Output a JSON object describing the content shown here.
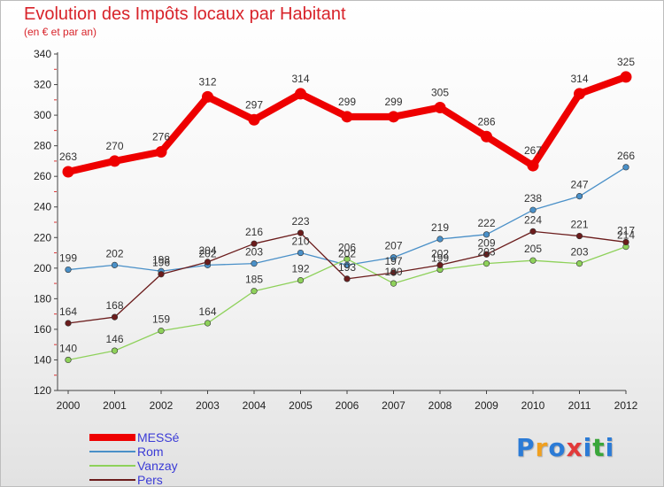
{
  "chart_data": {
    "type": "line",
    "title": "Evolution des Impôts locaux par Habitant",
    "subtitle": "(en € et par an)",
    "xlabel": "",
    "ylabel": "",
    "x": [
      "2000",
      "2001",
      "2002",
      "2003",
      "2004",
      "2005",
      "2006",
      "2007",
      "2008",
      "2009",
      "2010",
      "2011",
      "2012"
    ],
    "ylim": [
      120,
      340
    ],
    "yticks": [
      120,
      140,
      160,
      180,
      200,
      220,
      240,
      260,
      280,
      300,
      320,
      340
    ],
    "grid": false,
    "legend_position": "bottom-left",
    "series": [
      {
        "name": "MESSé",
        "color": "#ee0000",
        "values": [
          263,
          270,
          276,
          312,
          297,
          314,
          299,
          299,
          305,
          286,
          267,
          314,
          325
        ]
      },
      {
        "name": "Rom",
        "color": "#4a90c8",
        "values": [
          199,
          202,
          198,
          202,
          203,
          210,
          202,
          207,
          219,
          222,
          238,
          247,
          266
        ]
      },
      {
        "name": "Vanzay",
        "color": "#8ed15a",
        "values": [
          140,
          146,
          159,
          164,
          185,
          192,
          206,
          190,
          199,
          203,
          205,
          203,
          214
        ]
      },
      {
        "name": "Pers",
        "color": "#6b1c1c",
        "values": [
          164,
          168,
          196,
          204,
          216,
          223,
          193,
          197,
          202,
          209,
          224,
          221,
          217
        ]
      }
    ]
  },
  "logo": {
    "letters": [
      "P",
      "r",
      "o",
      "x",
      "i",
      "t",
      "i"
    ],
    "colors": [
      "#2b7bd6",
      "#f0a020",
      "#2b7bd6",
      "#e23a3a",
      "#2b7bd6",
      "#3aa63a",
      "#2b7bd6"
    ]
  }
}
